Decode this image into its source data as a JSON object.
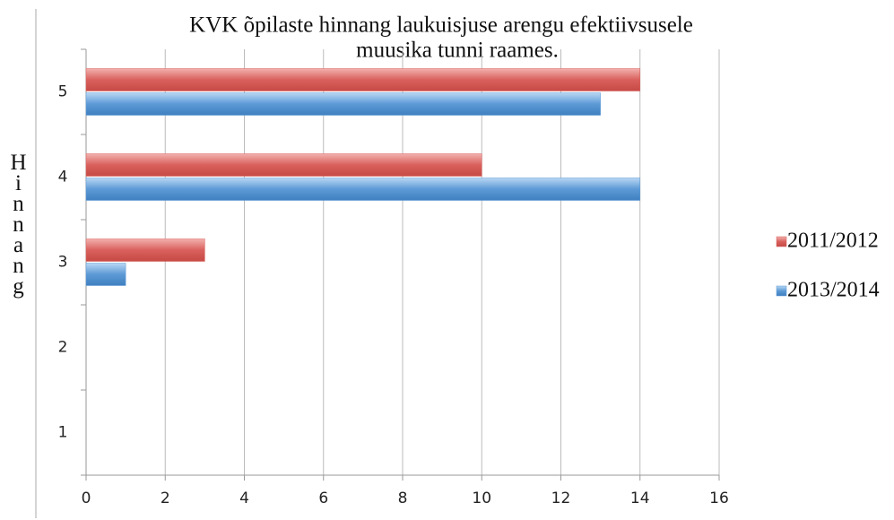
{
  "chart_data": {
    "type": "hbar",
    "title": [
      "KVK õpilaste hinnang laukuisjuse arengu efektiivsusele",
      "muusika tunni raames."
    ],
    "y_label": "Hinnang",
    "categories": [
      "1",
      "2",
      "3",
      "4",
      "5"
    ],
    "series": [
      {
        "name": "2011/2012",
        "color": "#d9605c",
        "values": [
          0,
          0,
          3,
          10,
          14
        ]
      },
      {
        "name": "2013/2014",
        "color": "#5c9ad6",
        "values": [
          0,
          0,
          1,
          14,
          13
        ]
      }
    ],
    "xlim": [
      0,
      16
    ],
    "xticks": [
      0,
      2,
      4,
      6,
      8,
      10,
      12,
      14,
      16
    ],
    "grid": true,
    "legend": "right"
  }
}
